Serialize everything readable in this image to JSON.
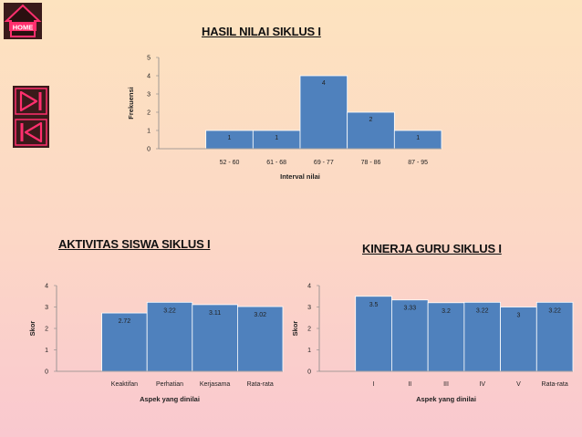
{
  "nav": {
    "home_label": "HOME",
    "forward_icon": "skip-forward-icon",
    "back_icon": "skip-back-icon",
    "accent": "#ff2f6d",
    "button_bg": "#3a1a1a"
  },
  "colors": {
    "bar": "#4f81bd",
    "bar_edge": "#ffffff",
    "axis": "#888888"
  },
  "headings": {
    "top": "HASIL NILAI SIKLUS I",
    "left": "AKTIVITAS SISWA  SIKLUS I",
    "right": "KINERJA  GURU SIKLUS I"
  },
  "chart_data": [
    {
      "type": "bar",
      "title": "HASIL NILAI SIKLUS I",
      "categories": [
        "",
        "52 - 60",
        "61 - 68",
        "69 - 77",
        "78 - 86",
        "87 - 95"
      ],
      "values": [
        0,
        1,
        1,
        4,
        2,
        1
      ],
      "value_labels": [
        "",
        "1",
        "1",
        "4",
        "2",
        "1"
      ],
      "xlabel": "Interval nilai",
      "ylabel": "Frekuensi",
      "ylim": [
        0,
        5
      ],
      "yticks": [
        "0",
        "1",
        "2",
        "3",
        "4",
        "5"
      ],
      "grid": false,
      "legend": "none"
    },
    {
      "type": "bar",
      "title": "AKTIVITAS SISWA  SIKLUS I",
      "categories": [
        "",
        "Keaktifan",
        "Perhatian",
        "Kerjasama",
        "Rata-rata"
      ],
      "values": [
        0,
        2.72,
        3.22,
        3.11,
        3.02
      ],
      "value_labels": [
        "",
        "2.72",
        "3.22",
        "3.11",
        "3.02"
      ],
      "xlabel": "Aspek yang dinilai",
      "ylabel": "Skor",
      "ylim": [
        0,
        4
      ],
      "yticks": [
        "0",
        "1",
        "2",
        "3",
        "4"
      ],
      "grid": false,
      "legend": "none"
    },
    {
      "type": "bar",
      "title": "KINERJA  GURU SIKLUS I",
      "categories": [
        "",
        "I",
        "II",
        "III",
        "IV",
        "V",
        "Rata-rata"
      ],
      "values": [
        0,
        3.5,
        3.33,
        3.2,
        3.22,
        3,
        3.22
      ],
      "value_labels": [
        "",
        "3.5",
        "3.33",
        "3.2",
        "3.22",
        "3",
        "3.22"
      ],
      "xlabel": "Aspek yang dinilai",
      "ylabel": "Skor",
      "ylim": [
        0,
        4
      ],
      "yticks": [
        "0",
        "1",
        "2",
        "3",
        "4"
      ],
      "grid": false,
      "legend": "none"
    }
  ]
}
